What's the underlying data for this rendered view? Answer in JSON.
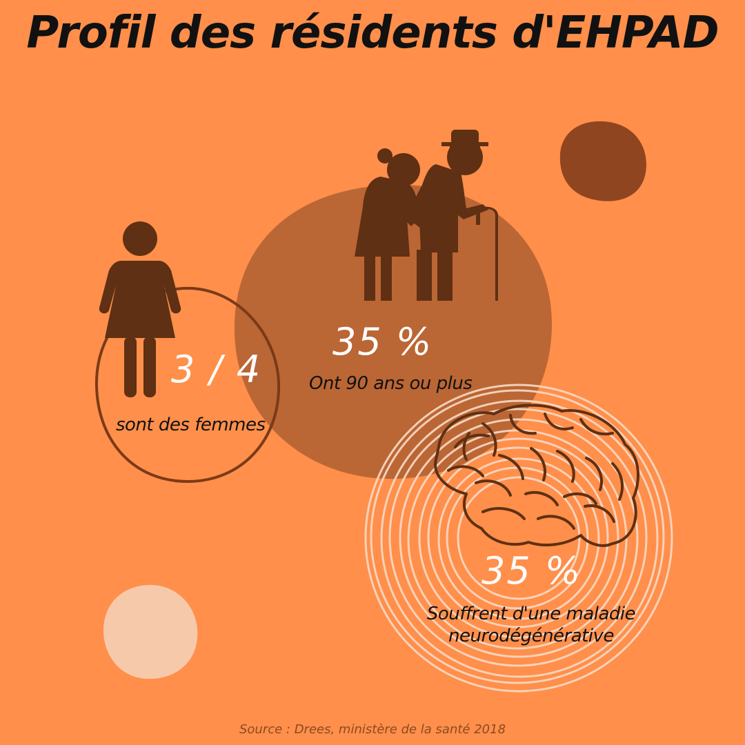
{
  "title": "Profil des résidents d'EHPAD",
  "stats": [
    {
      "value": "3 / 4",
      "label": "sont des femmes",
      "fraction": 0.75
    },
    {
      "value": "35 %",
      "label": "Ont 90 ans ou plus",
      "percent": 35
    },
    {
      "value": "35 %",
      "label": "Souffrent d'une maladie neurodégénérative",
      "percent": 35
    }
  ],
  "source": "Source : Drees, ministère de la santé 2018",
  "icons": [
    "woman-icon",
    "elderly-couple-icon",
    "brain-icon"
  ],
  "colors": {
    "background": "#ff8f4a",
    "dark_brown": "#5f3013",
    "medium_brown": "#bb6635",
    "deco_brown": "#8f4520",
    "ring_light": "#f8d4bd",
    "title": "#111111",
    "source": "#8a4a22"
  }
}
